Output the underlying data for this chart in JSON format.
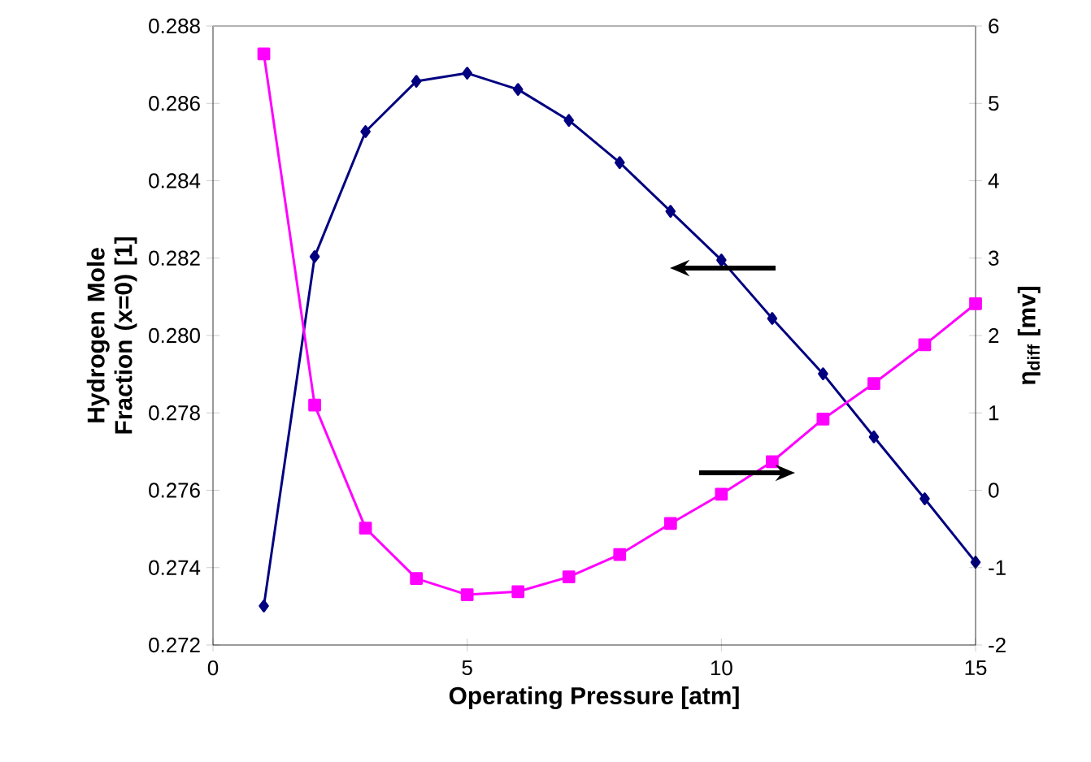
{
  "chart_data": {
    "type": "line",
    "xlabel": "Operating Pressure [atm]",
    "ylabel": "Hydrogen Mole Fraction (x=0) [1]",
    "y2label": "η$_{diff}$ [mv]",
    "x": [
      1,
      2,
      3,
      4,
      5,
      6,
      7,
      8,
      9,
      10,
      11,
      12,
      13,
      14,
      15
    ],
    "series": [
      {
        "color": "#000080",
        "marker": "diamond",
        "values": [
          0.27301,
          0.28204,
          0.28527,
          0.28657,
          0.28678,
          0.28636,
          0.28556,
          0.28447,
          0.28321,
          0.28195,
          0.28044,
          0.27901,
          0.27738,
          0.27578,
          0.27414
        ]
      },
      {
        "color": "#ff00ff",
        "marker": "square",
        "axis": "y2",
        "values": [
          5.64,
          1.1,
          -0.49,
          -1.14,
          -1.35,
          -1.31,
          -1.12,
          -0.83,
          -0.43,
          -0.05,
          0.37,
          0.92,
          1.38,
          1.88,
          2.41
        ]
      }
    ],
    "xlim": [
      0,
      15
    ],
    "xticks": [
      0,
      5,
      10,
      15
    ],
    "ylim": [
      0.272,
      0.288
    ],
    "yticks": [
      0.272,
      0.274,
      0.276,
      0.278,
      {
        "value": 0.28,
        "label": "0.280"
      },
      0.282,
      0.284,
      0.286,
      0.288
    ],
    "y2lim": [
      -2,
      6
    ],
    "y2ticks": [
      -2,
      -1,
      0,
      1,
      2,
      3,
      4,
      5,
      6
    ],
    "grid": false,
    "line_style": "solid"
  }
}
